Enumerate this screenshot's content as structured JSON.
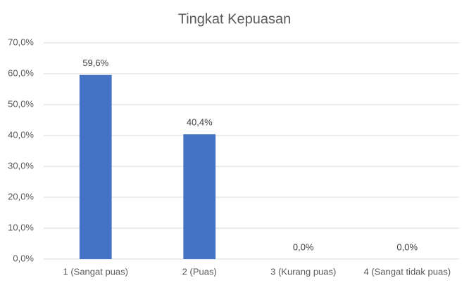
{
  "chart_data": {
    "type": "bar",
    "title": "Tingkat Kepuasan",
    "categories": [
      "1 (Sangat puas)",
      "2 (Puas)",
      "3 (Kurang puas)",
      "4 (Sangat tidak puas)"
    ],
    "values": [
      59.6,
      40.4,
      0,
      0
    ],
    "value_labels": [
      "59,6%",
      "40,4%",
      "0,0%",
      "0,0%"
    ],
    "color": "#4472c4",
    "ylim": [
      0,
      70
    ],
    "yticks": [
      {
        "value": 0,
        "label": "0,0%"
      },
      {
        "value": 10,
        "label": "10,0%"
      },
      {
        "value": 20,
        "label": "20,0%"
      },
      {
        "value": 30,
        "label": "30,0%"
      },
      {
        "value": 40,
        "label": "40,0%"
      },
      {
        "value": 50,
        "label": "50,0%"
      },
      {
        "value": 60,
        "label": "60,0%"
      },
      {
        "value": 70,
        "label": "70,0%"
      }
    ],
    "grid": true
  }
}
